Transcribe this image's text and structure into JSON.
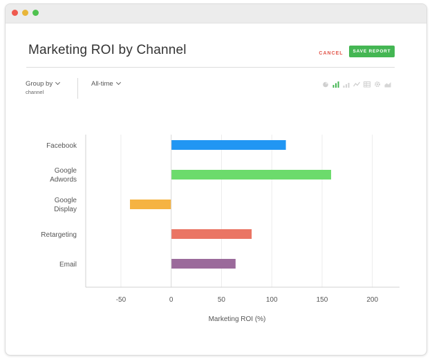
{
  "window": {
    "controls": [
      "close",
      "minimize",
      "zoom"
    ]
  },
  "header": {
    "title": "Marketing ROI by Channel",
    "cancel_label": "CANCEL",
    "save_label": "SAVE REPORT"
  },
  "filters": {
    "group_by_label": "Group by",
    "group_by_value": "channel",
    "time_label": "All-time"
  },
  "toolbar": {
    "icons": [
      "pie-chart-icon",
      "bar-chart-icon",
      "column-chart-icon",
      "line-chart-icon",
      "table-icon",
      "gear-icon",
      "area-chart-icon"
    ],
    "active": "bar-chart-icon"
  },
  "chart_data": {
    "type": "bar",
    "orientation": "horizontal",
    "categories": [
      "Facebook",
      "Google Adwords",
      "Google Display",
      "Retargeting",
      "Email"
    ],
    "category_lines": [
      [
        "Facebook"
      ],
      [
        "Google",
        "Adwords"
      ],
      [
        "Google",
        "Display"
      ],
      [
        "Retargeting"
      ],
      [
        "Email"
      ]
    ],
    "values": [
      114,
      159,
      -41,
      80,
      64
    ],
    "colors": [
      "#2196f3",
      "#6cdb6c",
      "#f5b342",
      "#ea7564",
      "#9b6a9b"
    ],
    "xlabel": "Marketing ROI (%)",
    "ylabel": "",
    "xlim": [
      -85,
      227
    ],
    "xticks": [
      -50,
      0,
      50,
      100,
      150,
      200
    ],
    "xtick_labels": [
      "-50",
      "0",
      "50",
      "100",
      "150",
      "200"
    ],
    "grid": true
  }
}
